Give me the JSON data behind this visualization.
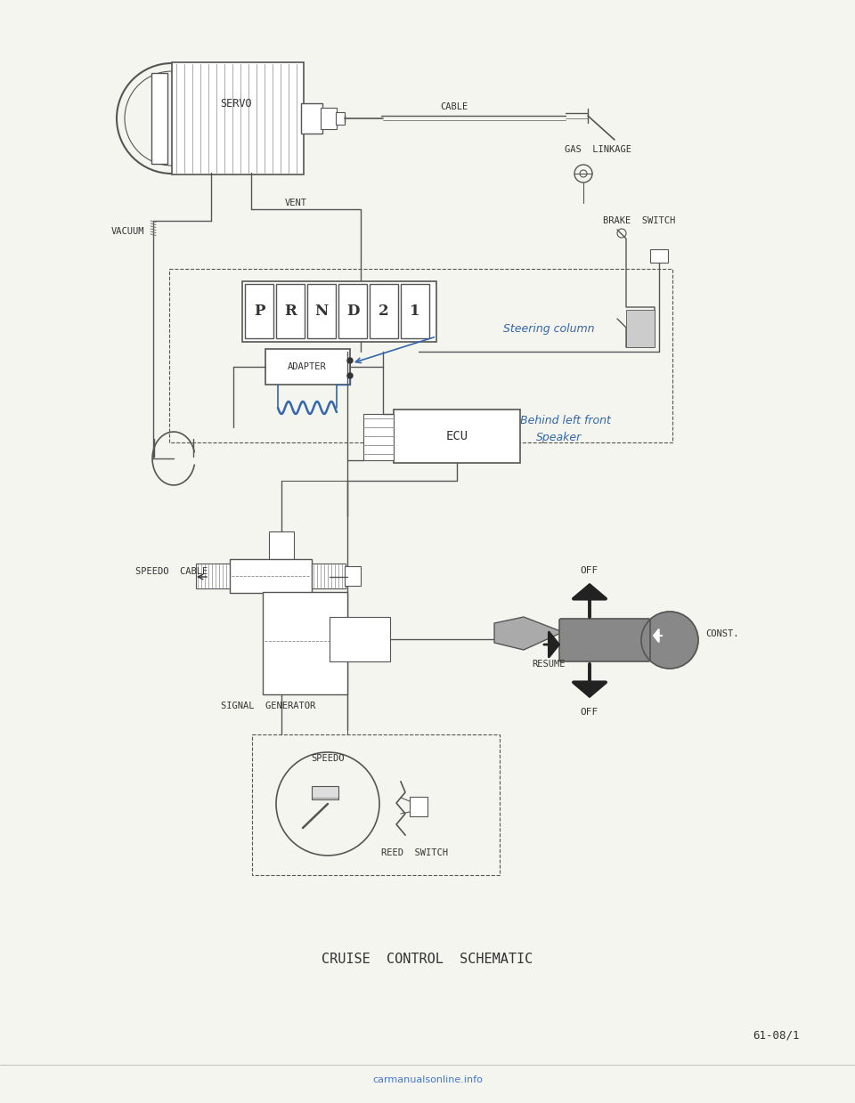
{
  "bg_color": "#f5f5f0",
  "line_color": "#555555",
  "dark_color": "#333333",
  "blue_color": "#3366aa",
  "title": "CRUISE  CONTROL  SCHEMATIC",
  "page_ref": "61-08/1",
  "watermark": "carmanualsonline.info",
  "labels": {
    "servo": "SERVO",
    "cable": "CABLE",
    "gas_linkage": "GAS  LINKAGE",
    "brake_switch": "BRAKE  SWITCH",
    "vacuum": "VACUUM",
    "vent": "VENT",
    "adapter": "ADAPTER",
    "steering_col": "Steering column",
    "ecu": "ECU",
    "behind_left": "Behind left front",
    "speaker": "Speaker",
    "speedo_cable": "SPEEDO  CABLE",
    "signal_gen": "SIGNAL  GENERATOR",
    "off1": "OFF",
    "const": "CONST.",
    "resume": "RESUME",
    "off2": "OFF",
    "speedo": "SPEEDO",
    "reed_switch": "REED  SWITCH"
  }
}
